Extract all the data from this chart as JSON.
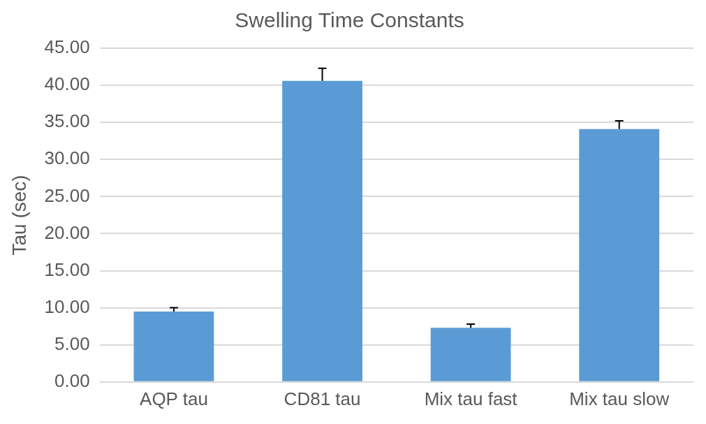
{
  "chart_data": {
    "type": "bar",
    "title": "Swelling Time Constants",
    "ylabel": "Tau (sec)",
    "categories": [
      "AQP tau",
      "CD81 tau",
      "Mix tau fast",
      "Mix tau slow"
    ],
    "values": [
      9.5,
      40.6,
      7.3,
      34.1
    ],
    "errors": [
      [
        9.5,
        10.0
      ],
      [
        40.6,
        42.3
      ],
      [
        7.3,
        7.8
      ],
      [
        34.1,
        35.2
      ]
    ],
    "color": "#5b9bd5",
    "ylim": [
      0,
      45
    ],
    "yticks": [
      {
        "value": 0,
        "label": "0.00"
      },
      {
        "value": 5,
        "label": "5.00"
      },
      {
        "value": 10,
        "label": "10.00"
      },
      {
        "value": 15,
        "label": "15.00"
      },
      {
        "value": 20,
        "label": "20.00"
      },
      {
        "value": 25,
        "label": "25.00"
      },
      {
        "value": 30,
        "label": "30.00"
      },
      {
        "value": 35,
        "label": "35.00"
      },
      {
        "value": 40,
        "label": "40.00"
      },
      {
        "value": 45,
        "label": "45.00"
      }
    ],
    "grid": "y",
    "legend": false
  }
}
